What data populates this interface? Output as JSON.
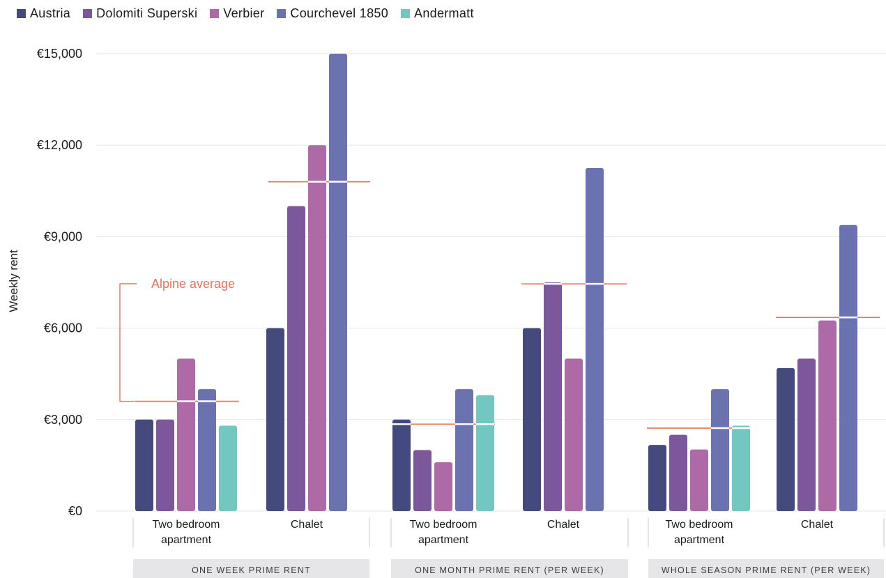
{
  "colors": {
    "Austria": "#444a7d",
    "Dolomiti Superski": "#7d579c",
    "Verbier": "#ad6aa6",
    "Courchevel 1850": "#6a72b0",
    "Andermatt": "#72c7c1",
    "average": "#e8735a",
    "grid": "#e6e6e6",
    "group_band": "#e6e6e8",
    "separator": "#c8c8c8"
  },
  "chart_data": {
    "type": "bar",
    "ylabel": "Weekly rent",
    "ylim": [
      0,
      15000
    ],
    "yticks": [
      {
        "value": 0,
        "label": "€0"
      },
      {
        "value": 3000,
        "label": "€3,000"
      },
      {
        "value": 6000,
        "label": "€6,000"
      },
      {
        "value": 9000,
        "label": "€9,000"
      },
      {
        "value": 12000,
        "label": "€12,000"
      },
      {
        "value": 15000,
        "label": "€15,000"
      }
    ],
    "legend": [
      "Austria",
      "Dolomiti Superski",
      "Verbier",
      "Courchevel 1850",
      "Andermatt"
    ],
    "legend_position": "top-left",
    "annotation": "Alpine average",
    "groups": [
      {
        "label": "ONE WEEK PRIME RENT",
        "categories": [
          {
            "label_lines": [
              "Two bedroom",
              "apartment"
            ],
            "values": {
              "Austria": 3000,
              "Dolomiti Superski": 3000,
              "Verbier": 5000,
              "Courchevel 1850": 4000,
              "Andermatt": 2800
            },
            "average": 3600
          },
          {
            "label_lines": [
              "Chalet"
            ],
            "values": {
              "Austria": 6000,
              "Dolomiti Superski": 10000,
              "Verbier": 12000,
              "Courchevel 1850": 15000
            },
            "average": 10800
          }
        ]
      },
      {
        "label": "ONE MONTH PRIME RENT (PER WEEK)",
        "categories": [
          {
            "label_lines": [
              "Two bedroom",
              "apartment"
            ],
            "values": {
              "Austria": 3000,
              "Dolomiti Superski": 2000,
              "Verbier": 1600,
              "Courchevel 1850": 4000,
              "Andermatt": 3800
            },
            "average": 2850
          },
          {
            "label_lines": [
              "Chalet"
            ],
            "values": {
              "Austria": 6000,
              "Dolomiti Superski": 7500,
              "Verbier": 5000,
              "Courchevel 1850": 11250
            },
            "average": 7450
          }
        ]
      },
      {
        "label": "WHOLE SEASON PRIME RENT (PER WEEK)",
        "categories": [
          {
            "label_lines": [
              "Two bedroom",
              "apartment"
            ],
            "values": {
              "Austria": 2170,
              "Dolomiti Superski": 2500,
              "Verbier": 2020,
              "Courchevel 1850": 4000,
              "Andermatt": 2800
            },
            "average": 2720
          },
          {
            "label_lines": [
              "Chalet"
            ],
            "values": {
              "Austria": 4690,
              "Dolomiti Superski": 5000,
              "Verbier": 6250,
              "Courchevel 1850": 9380
            },
            "average": 6350
          }
        ]
      }
    ]
  }
}
